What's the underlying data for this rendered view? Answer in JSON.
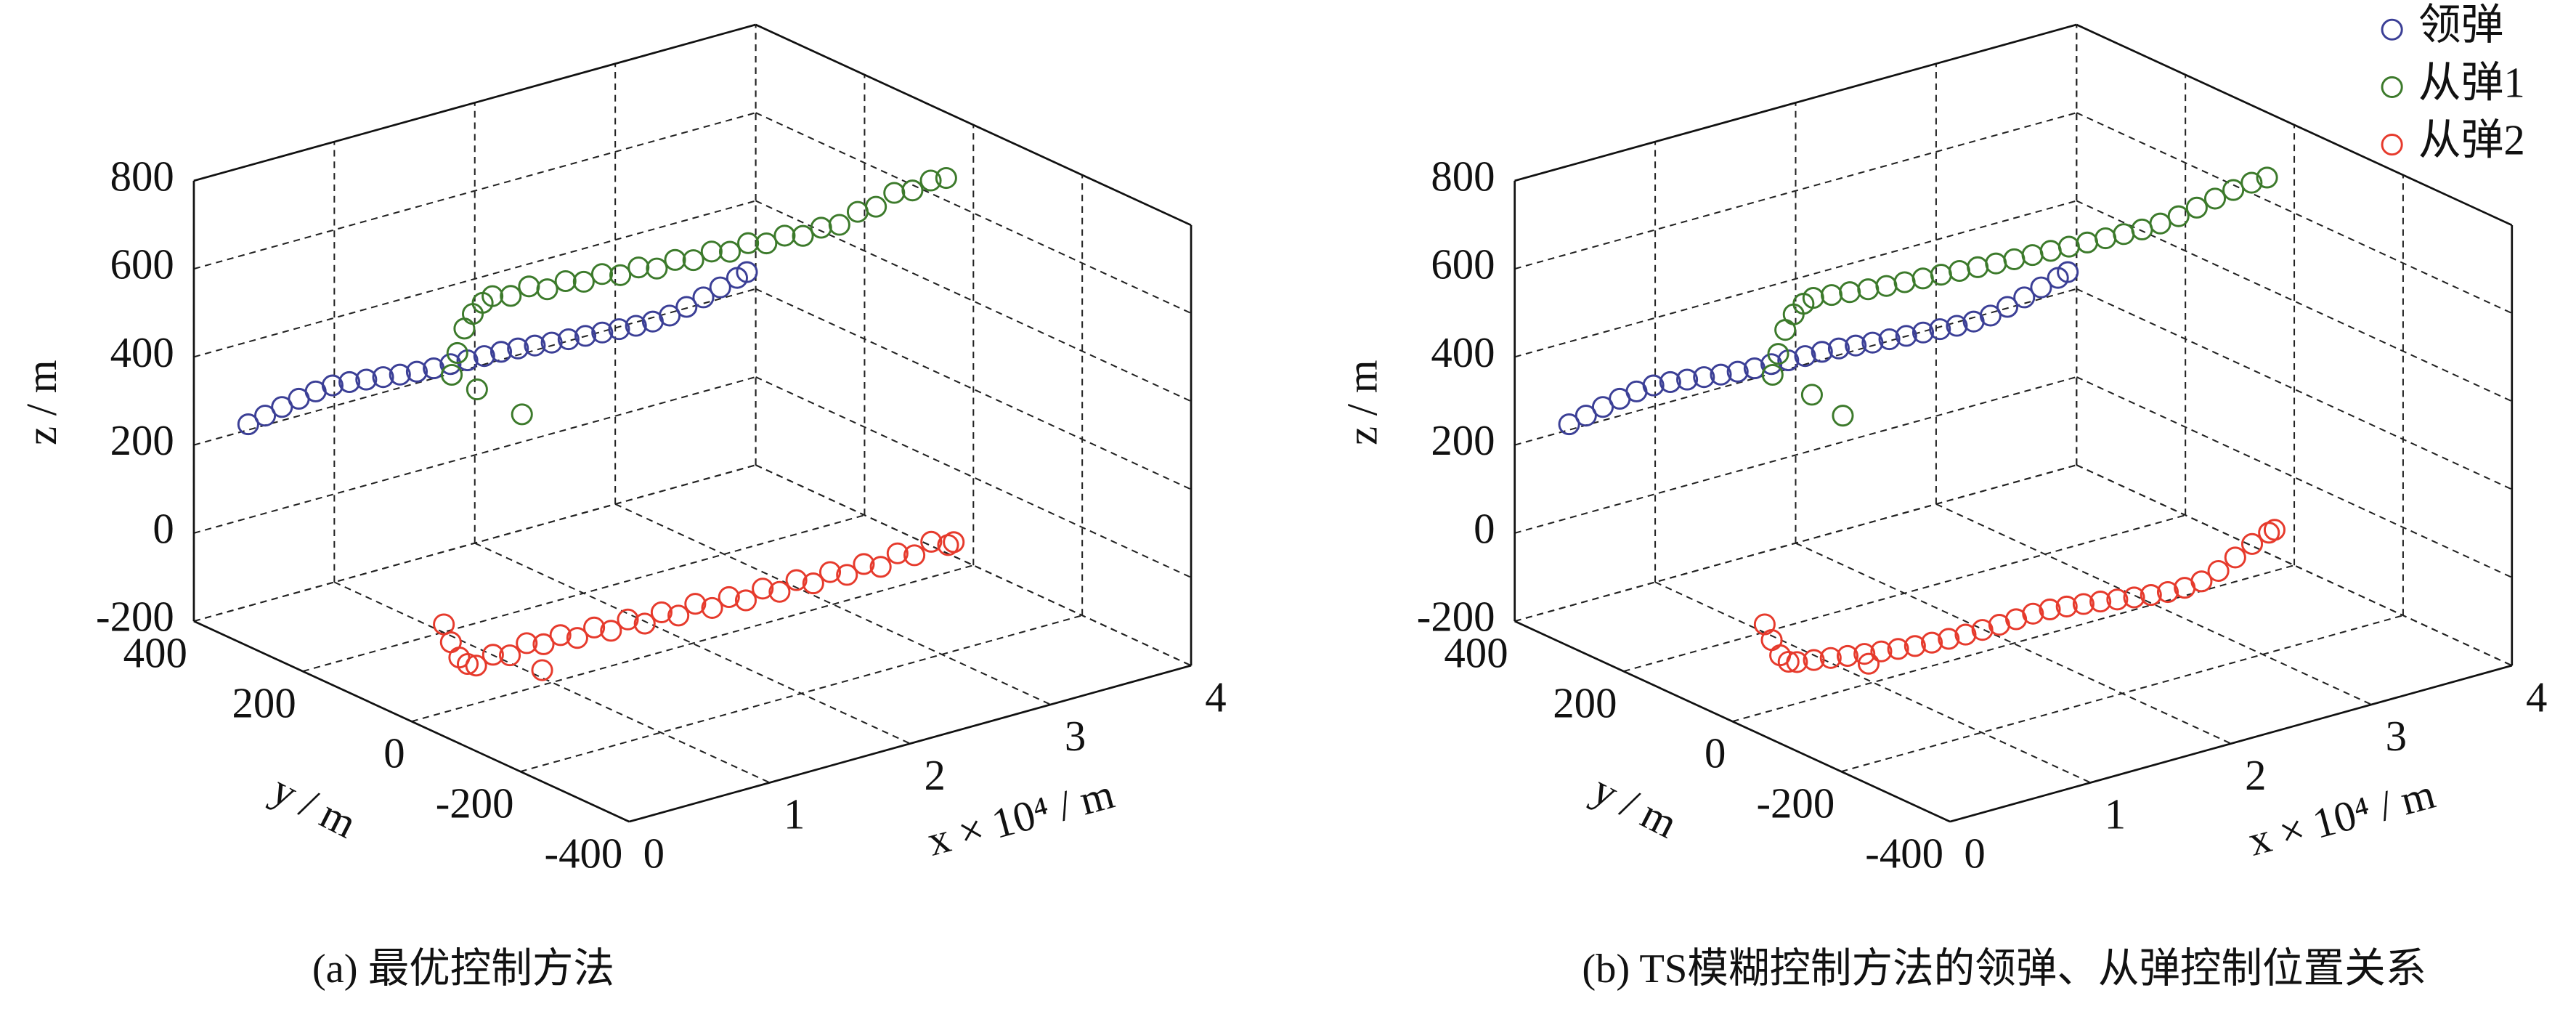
{
  "chart_data": [
    {
      "type": "scatter3d",
      "caption": "(a)  最优控制方法",
      "xlabel": "x × 10⁴ / m",
      "ylabel": "y / m",
      "zlabel": "z / m",
      "xlim": [
        0,
        4
      ],
      "ylim": [
        -400,
        400
      ],
      "zlim": [
        -200,
        800
      ],
      "xticks": [
        0,
        1,
        2,
        3,
        4
      ],
      "yticks": [
        -400,
        -200,
        0,
        200,
        400
      ],
      "zticks": [
        -200,
        0,
        200,
        400,
        600,
        800
      ],
      "grid": true,
      "series": [
        {
          "color": "#3b3f96",
          "x": [
            0,
            0.12,
            0.24,
            0.36,
            0.48,
            0.6,
            0.72,
            0.84,
            0.96,
            1.08,
            1.2,
            1.32,
            1.44,
            1.56,
            1.68,
            1.8,
            1.92,
            2.04,
            2.16,
            2.28,
            2.4,
            2.52,
            2.64,
            2.76,
            2.88,
            3,
            3.12,
            3.24,
            3.36,
            3.48,
            3.55
          ],
          "y": [
            300,
            300,
            300,
            300,
            300,
            300,
            300,
            300,
            300,
            300,
            300,
            300,
            300,
            300,
            300,
            300,
            300,
            300,
            300,
            300,
            300,
            300,
            300,
            300,
            300,
            300,
            300,
            300,
            300,
            300,
            300
          ],
          "z": [
            304,
            313,
            322,
            330,
            336,
            339,
            336,
            331,
            326,
            321,
            317,
            314,
            313,
            311,
            310,
            309,
            306,
            302,
            298,
            295,
            292,
            289,
            286,
            283,
            282,
            285,
            294,
            305,
            317,
            328,
            335
          ]
        },
        {
          "color": "#3c7a2b",
          "x": [
            0.48,
            0.52,
            0.57,
            0.63,
            0.7,
            0.77,
            0.9,
            1.03,
            1.16,
            1.29,
            1.42,
            1.55,
            1.68,
            1.81,
            1.94,
            2.07,
            2.2,
            2.33,
            2.46,
            2.59,
            2.72,
            2.85,
            2.98,
            3.11,
            3.24,
            3.37,
            3.5,
            3.63,
            3.76,
            3.89,
            4,
            0.66,
            0.98
          ],
          "y": [
            50,
            50,
            50,
            50,
            50,
            50,
            50,
            50,
            50,
            50,
            50,
            50,
            50,
            50,
            50,
            50,
            50,
            50,
            50,
            50,
            50,
            50,
            50,
            50,
            50,
            50,
            50,
            50,
            50,
            50,
            50,
            50,
            50
          ],
          "z": [
            516,
            562,
            613,
            641,
            660,
            669,
            658,
            668,
            650,
            657,
            644,
            650,
            636,
            642,
            628,
            636,
            624,
            632,
            620,
            628,
            616,
            622,
            610,
            617,
            612,
            630,
            630,
            650,
            644,
            655,
            651,
            467,
            382
          ]
        },
        {
          "color": "#e63a2c",
          "x": [
            0.23,
            0.28,
            0.34,
            0.4,
            0.46,
            0.58,
            0.7,
            0.82,
            0.94,
            1.06,
            1.18,
            1.3,
            1.42,
            1.54,
            1.66,
            1.78,
            1.9,
            2.02,
            2.14,
            2.26,
            2.38,
            2.5,
            2.62,
            2.74,
            2.86,
            2.98,
            3.1,
            3.22,
            3.34,
            3.46,
            3.58,
            3.7,
            3.82,
            3.86,
            0.93
          ],
          "y": [
            0,
            0,
            0,
            0,
            0,
            0,
            0,
            0,
            0,
            0,
            0,
            0,
            0,
            0,
            0,
            0,
            0,
            0,
            0,
            0,
            0,
            0,
            0,
            0,
            0,
            0,
            0,
            0,
            0,
            0,
            0,
            0,
            0,
            0,
            0
          ],
          "z": [
            0,
            -45,
            -85,
            -105,
            -114,
            -100,
            -112,
            -95,
            -108,
            -98,
            -115,
            -102,
            -120,
            -105,
            -125,
            -110,
            -128,
            -112,
            -132,
            -118,
            -136,
            -120,
            -138,
            -122,
            -140,
            -125,
            -142,
            -128,
            -145,
            -125,
            -140,
            -120,
            -138,
            -135,
            -166
          ]
        }
      ]
    },
    {
      "type": "scatter3d",
      "caption": "(b)  TS模糊控制方法的领弹、从弹控制位置关系",
      "xlabel": "x × 10⁴ / m",
      "ylabel": "y / m",
      "zlabel": "z / m",
      "xlim": [
        0,
        4
      ],
      "ylim": [
        -400,
        400
      ],
      "zlim": [
        -200,
        800
      ],
      "xticks": [
        0,
        1,
        2,
        3,
        4
      ],
      "yticks": [
        -400,
        -200,
        0,
        200,
        400
      ],
      "zticks": [
        -200,
        0,
        200,
        400,
        600,
        800
      ],
      "grid": true,
      "legend": "upper right",
      "series": [
        {
          "name": "领弹",
          "color": "#3b3f96",
          "x": [
            0,
            0.12,
            0.24,
            0.36,
            0.48,
            0.6,
            0.72,
            0.84,
            0.96,
            1.08,
            1.2,
            1.32,
            1.44,
            1.56,
            1.68,
            1.8,
            1.92,
            2.04,
            2.16,
            2.28,
            2.4,
            2.52,
            2.64,
            2.76,
            2.88,
            3,
            3.12,
            3.24,
            3.36,
            3.48,
            3.55
          ],
          "y": [
            300,
            300,
            300,
            300,
            300,
            300,
            300,
            300,
            300,
            300,
            300,
            300,
            300,
            300,
            300,
            300,
            300,
            300,
            300,
            300,
            300,
            300,
            300,
            300,
            300,
            300,
            300,
            300,
            300,
            300,
            300
          ],
          "z": [
            304,
            313,
            322,
            330,
            336,
            339,
            336,
            331,
            326,
            321,
            317,
            314,
            313,
            311,
            310,
            309,
            306,
            302,
            298,
            295,
            292,
            289,
            286,
            283,
            282,
            285,
            294,
            305,
            317,
            328,
            335
          ]
        },
        {
          "name": "从弹1",
          "color": "#3c7a2b",
          "x": [
            0.48,
            0.52,
            0.57,
            0.63,
            0.7,
            0.77,
            0.9,
            1.03,
            1.16,
            1.29,
            1.42,
            1.55,
            1.68,
            1.81,
            1.94,
            2.07,
            2.2,
            2.33,
            2.46,
            2.59,
            2.72,
            2.85,
            2.98,
            3.11,
            3.24,
            3.37,
            3.5,
            3.63,
            3.76,
            3.89,
            4,
            0.76,
            0.98
          ],
          "y": [
            50,
            50,
            50,
            50,
            50,
            50,
            50,
            50,
            50,
            50,
            50,
            50,
            50,
            50,
            50,
            50,
            50,
            50,
            50,
            50,
            50,
            50,
            50,
            50,
            50,
            50,
            50,
            50,
            50,
            50,
            50,
            50,
            50
          ],
          "z": [
            516,
            560,
            610,
            640,
            658,
            665,
            660,
            655,
            650,
            646,
            643,
            640,
            637,
            634,
            631,
            628,
            626,
            624,
            622,
            620,
            618,
            616,
            614,
            613,
            615,
            620,
            628,
            637,
            645,
            650,
            652,
            446,
            379
          ]
        },
        {
          "name": "从弹2",
          "color": "#e63a2c",
          "x": [
            0.23,
            0.28,
            0.34,
            0.4,
            0.46,
            0.58,
            0.7,
            0.82,
            0.94,
            1.06,
            1.18,
            1.3,
            1.42,
            1.54,
            1.66,
            1.78,
            1.9,
            2.02,
            2.14,
            2.26,
            2.38,
            2.5,
            2.62,
            2.74,
            2.86,
            2.98,
            3.1,
            3.22,
            3.34,
            3.46,
            3.58,
            3.7,
            3.82,
            3.86,
            0.97
          ],
          "y": [
            0,
            0,
            0,
            0,
            0,
            0,
            0,
            0,
            0,
            0,
            0,
            0,
            0,
            0,
            0,
            0,
            0,
            0,
            0,
            0,
            0,
            0,
            0,
            0,
            0,
            0,
            0,
            0,
            0,
            0,
            0,
            0,
            0,
            0,
            0
          ],
          "z": [
            0,
            -40,
            -80,
            -100,
            -106,
            -112,
            -118,
            -124,
            -130,
            -135,
            -140,
            -144,
            -147,
            -149,
            -150,
            -150,
            -149,
            -147,
            -145,
            -146,
            -150,
            -155,
            -160,
            -166,
            -172,
            -177,
            -181,
            -182,
            -178,
            -165,
            -145,
            -125,
            -110,
            -107,
            -155
          ]
        }
      ]
    }
  ]
}
